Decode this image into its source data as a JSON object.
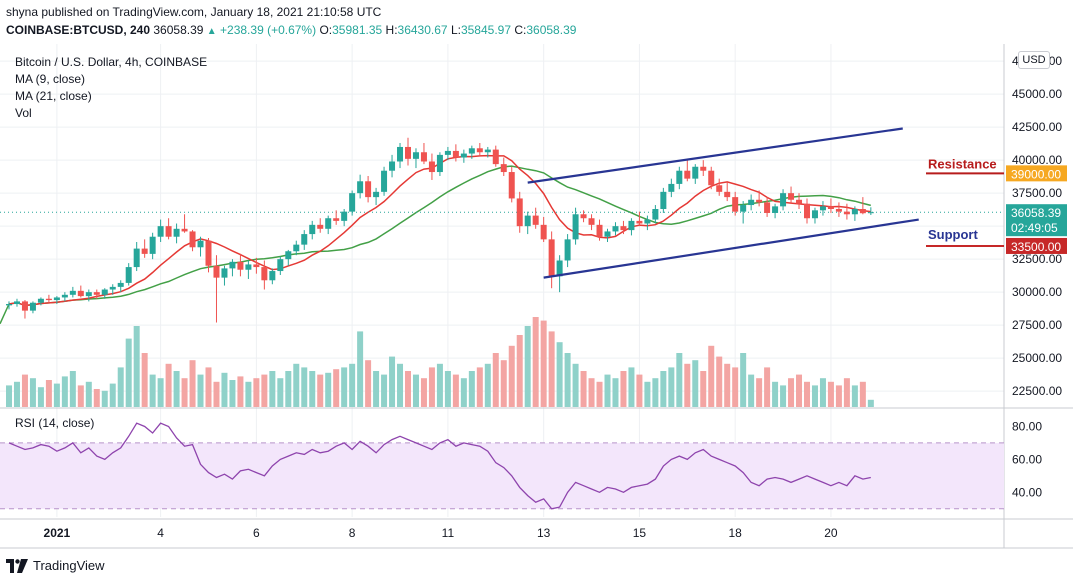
{
  "header": {
    "published": "shyna published on TradingView.com, January 18, 2021 21:10:58 UTC",
    "symbol": "COINBASE:BTCUSD, 240",
    "last": "36058.39",
    "change": "+238.39 (+0.67%)",
    "open_label": "O:",
    "open": "35981.35",
    "high_label": "H:",
    "high": "36430.67",
    "low_label": "L:",
    "low": "35845.97",
    "close_label": "C:",
    "close": "36058.39"
  },
  "legend": {
    "title": "Bitcoin / U.S. Dollar, 4h, COINBASE",
    "ma9": "MA (9, close)",
    "ma21": "MA (21, close)",
    "vol": "Vol"
  },
  "currency_button": "USD",
  "rsi_label": "RSI (14, close)",
  "footer": {
    "brand": "TradingView"
  },
  "colors": {
    "up": "#26a69a",
    "down": "#ef5350",
    "ma9": "#e53935",
    "ma21": "#43a047",
    "channel": "#283593",
    "resistance": "#b71c1c",
    "support": "#283593",
    "resistance_label": "#f6a821",
    "support_label": "#c62828",
    "rsi": "#8e44ad"
  },
  "chart_data": {
    "type": "candlestick",
    "title": "Bitcoin / U.S. Dollar, 4h, COINBASE",
    "price_axis": {
      "ticks": [
        22500,
        25000,
        27500,
        30000,
        32500,
        35000,
        37500,
        40000,
        42500,
        45000,
        47500
      ],
      "tick_labels": [
        "22500.00",
        "25000.00",
        "27500.00",
        "30000.00",
        "32500.00",
        "35000.00",
        "37500.00",
        "40000.00",
        "42500.00",
        "45000.00",
        "47500.00"
      ],
      "ylim": [
        21300,
        48800
      ]
    },
    "x_axis": {
      "labels": [
        {
          "label": "2021",
          "slot": 6
        },
        {
          "label": "4",
          "slot": 19
        },
        {
          "label": "6",
          "slot": 31
        },
        {
          "label": "8",
          "slot": 43
        },
        {
          "label": "11",
          "slot": 55
        },
        {
          "label": "13",
          "slot": 67
        },
        {
          "label": "15",
          "slot": 79
        },
        {
          "label": "18",
          "slot": 91
        },
        {
          "label": "20",
          "slot": 103
        }
      ]
    },
    "current_price_label": "36058.39",
    "countdown_label": "02:49:05",
    "resistance": {
      "label": "Resistance",
      "value": 39000,
      "value_label": "39000.00"
    },
    "support": {
      "label": "Support",
      "value": 33500,
      "value_label": "33500.00"
    },
    "candles": [
      [
        29000,
        29300,
        28700,
        29100
      ],
      [
        29100,
        29500,
        28900,
        29300
      ],
      [
        29300,
        29400,
        28000,
        28600
      ],
      [
        28600,
        29300,
        28400,
        29200
      ],
      [
        29200,
        29600,
        29000,
        29500
      ],
      [
        29500,
        29800,
        29200,
        29400
      ],
      [
        29400,
        29700,
        29100,
        29600
      ],
      [
        29600,
        30000,
        29300,
        29800
      ],
      [
        29800,
        30400,
        29600,
        30100
      ],
      [
        30100,
        30500,
        29600,
        29700
      ],
      [
        29700,
        30200,
        29300,
        30000
      ],
      [
        30000,
        30200,
        29500,
        29800
      ],
      [
        29800,
        30300,
        29500,
        30200
      ],
      [
        30200,
        30600,
        29800,
        30400
      ],
      [
        30400,
        30900,
        30000,
        30700
      ],
      [
        30700,
        32200,
        30500,
        31900
      ],
      [
        31900,
        33800,
        31600,
        33300
      ],
      [
        33300,
        34000,
        32600,
        32900
      ],
      [
        32900,
        34500,
        32500,
        34200
      ],
      [
        34200,
        35500,
        33800,
        35000
      ],
      [
        35000,
        35600,
        34000,
        34200
      ],
      [
        34200,
        35200,
        33700,
        34800
      ],
      [
        34800,
        35900,
        34500,
        34600
      ],
      [
        34600,
        34700,
        33100,
        33400
      ],
      [
        33400,
        34200,
        32700,
        33900
      ],
      [
        33900,
        34100,
        31500,
        32000
      ],
      [
        32000,
        32800,
        27700,
        31100
      ],
      [
        31100,
        32000,
        30500,
        31800
      ],
      [
        31800,
        32500,
        31200,
        32300
      ],
      [
        32300,
        32900,
        31200,
        31700
      ],
      [
        31700,
        32400,
        31000,
        32100
      ],
      [
        32100,
        32600,
        31400,
        31900
      ],
      [
        31900,
        32400,
        30200,
        30900
      ],
      [
        30900,
        31800,
        30600,
        31600
      ],
      [
        31600,
        32700,
        31300,
        32500
      ],
      [
        32500,
        33200,
        32000,
        33100
      ],
      [
        33100,
        33900,
        32800,
        33600
      ],
      [
        33600,
        34700,
        33200,
        34400
      ],
      [
        34400,
        35400,
        34000,
        35100
      ],
      [
        35100,
        35600,
        34500,
        34800
      ],
      [
        34800,
        35800,
        34400,
        35600
      ],
      [
        35600,
        36200,
        35100,
        35400
      ],
      [
        35400,
        36300,
        35000,
        36100
      ],
      [
        36100,
        37700,
        35800,
        37500
      ],
      [
        37500,
        38900,
        37100,
        38400
      ],
      [
        38400,
        38800,
        36800,
        37200
      ],
      [
        37200,
        37900,
        36600,
        37600
      ],
      [
        37600,
        39500,
        37300,
        39200
      ],
      [
        39200,
        40400,
        38700,
        39900
      ],
      [
        39900,
        41300,
        39400,
        41000
      ],
      [
        41000,
        41700,
        39600,
        40100
      ],
      [
        40100,
        40900,
        39400,
        40600
      ],
      [
        40600,
        41300,
        39700,
        39900
      ],
      [
        39900,
        40500,
        38500,
        39100
      ],
      [
        39100,
        40600,
        38800,
        40400
      ],
      [
        40400,
        41000,
        40000,
        40700
      ],
      [
        40700,
        41200,
        39900,
        40200
      ],
      [
        40200,
        40800,
        39800,
        40500
      ],
      [
        40500,
        41100,
        40100,
        40900
      ],
      [
        40900,
        41300,
        40300,
        40600
      ],
      [
        40600,
        41000,
        40200,
        40800
      ],
      [
        40800,
        41100,
        39500,
        39700
      ],
      [
        39700,
        40200,
        38800,
        39100
      ],
      [
        39100,
        39500,
        36800,
        37100
      ],
      [
        37100,
        37600,
        34500,
        35000
      ],
      [
        35000,
        36100,
        34400,
        35800
      ],
      [
        35800,
        36400,
        34800,
        35100
      ],
      [
        35100,
        35700,
        33800,
        34000
      ],
      [
        34000,
        34600,
        30300,
        31200
      ],
      [
        31200,
        32800,
        30000,
        32400
      ],
      [
        32400,
        34400,
        31900,
        34000
      ],
      [
        34000,
        36400,
        33600,
        35900
      ],
      [
        35900,
        36200,
        35300,
        35600
      ],
      [
        35600,
        35900,
        34700,
        35100
      ],
      [
        35100,
        35500,
        33900,
        34200
      ],
      [
        34200,
        34800,
        33800,
        34600
      ],
      [
        34600,
        35300,
        34300,
        35000
      ],
      [
        35000,
        35400,
        34400,
        34700
      ],
      [
        34700,
        35600,
        34300,
        35400
      ],
      [
        35400,
        36100,
        35000,
        35200
      ],
      [
        35200,
        35800,
        34700,
        35500
      ],
      [
        35500,
        36600,
        35200,
        36300
      ],
      [
        36300,
        37900,
        36000,
        37600
      ],
      [
        37600,
        38600,
        37200,
        38200
      ],
      [
        38200,
        39500,
        37800,
        39200
      ],
      [
        39200,
        40100,
        38400,
        38600
      ],
      [
        38600,
        39700,
        38200,
        39500
      ],
      [
        39500,
        40000,
        38800,
        39200
      ],
      [
        39200,
        39500,
        37800,
        38100
      ],
      [
        38100,
        38600,
        37300,
        37600
      ],
      [
        37600,
        38300,
        36900,
        37200
      ],
      [
        37200,
        37600,
        35800,
        36100
      ],
      [
        36100,
        36900,
        35200,
        36600
      ],
      [
        36600,
        37400,
        36200,
        37000
      ],
      [
        37000,
        37700,
        36500,
        36800
      ],
      [
        36800,
        37200,
        35700,
        36000
      ],
      [
        36000,
        36700,
        35600,
        36500
      ],
      [
        36500,
        37800,
        36200,
        37500
      ],
      [
        37500,
        38000,
        36700,
        37000
      ],
      [
        37000,
        37500,
        36300,
        36700
      ],
      [
        36700,
        37100,
        35200,
        35600
      ],
      [
        35600,
        36400,
        35200,
        36200
      ],
      [
        36200,
        36900,
        35800,
        36500
      ],
      [
        36500,
        37100,
        36000,
        36300
      ],
      [
        36300,
        36800,
        35700,
        36100
      ],
      [
        36100,
        36700,
        35500,
        35900
      ],
      [
        35900,
        36500,
        35400,
        36300
      ],
      [
        36300,
        37200,
        35900,
        35981
      ],
      [
        35981,
        36430,
        35845,
        36058
      ]
    ],
    "volumes": [
      12,
      14,
      18,
      16,
      11,
      15,
      13,
      17,
      20,
      12,
      14,
      10,
      9,
      13,
      22,
      38,
      45,
      30,
      18,
      16,
      24,
      20,
      16,
      26,
      18,
      22,
      14,
      19,
      15,
      17,
      14,
      16,
      18,
      20,
      16,
      20,
      24,
      22,
      20,
      18,
      19,
      21,
      22,
      24,
      42,
      26,
      20,
      18,
      28,
      24,
      20,
      18,
      16,
      22,
      24,
      20,
      18,
      16,
      20,
      22,
      24,
      30,
      26,
      34,
      40,
      45,
      50,
      48,
      42,
      36,
      30,
      24,
      20,
      16,
      14,
      18,
      16,
      20,
      22,
      18,
      14,
      16,
      20,
      22,
      30,
      24,
      26,
      20,
      34,
      28,
      24,
      22,
      30,
      18,
      16,
      22,
      14,
      12,
      16,
      18,
      14,
      12,
      16,
      14,
      12,
      16,
      12,
      14,
      4
    ],
    "rsi": {
      "name": "RSI (14, close)",
      "ylim": [
        25,
        90
      ],
      "ticks": [
        40,
        60,
        80
      ],
      "tick_labels": [
        "40.00",
        "60.00",
        "80.00"
      ],
      "band": [
        30,
        70
      ],
      "values": [
        70,
        68,
        66,
        67,
        69,
        68,
        65,
        67,
        70,
        64,
        67,
        62,
        60,
        64,
        67,
        74,
        82,
        80,
        76,
        82,
        80,
        73,
        68,
        69,
        57,
        52,
        49,
        51,
        48,
        53,
        54,
        52,
        50,
        56,
        60,
        62,
        64,
        63,
        66,
        64,
        65,
        68,
        70,
        66,
        71,
        68,
        64,
        69,
        72,
        74,
        72,
        70,
        68,
        66,
        70,
        72,
        68,
        70,
        69,
        68,
        65,
        58,
        55,
        50,
        43,
        38,
        34,
        36,
        30,
        31,
        40,
        46,
        44,
        42,
        40,
        43,
        42,
        40,
        43,
        44,
        45,
        48,
        56,
        60,
        62,
        60,
        64,
        66,
        62,
        60,
        58,
        56,
        52,
        46,
        44,
        48,
        49,
        48,
        46,
        48,
        50,
        48,
        46,
        44,
        46,
        44,
        50,
        48,
        49
      ]
    }
  }
}
